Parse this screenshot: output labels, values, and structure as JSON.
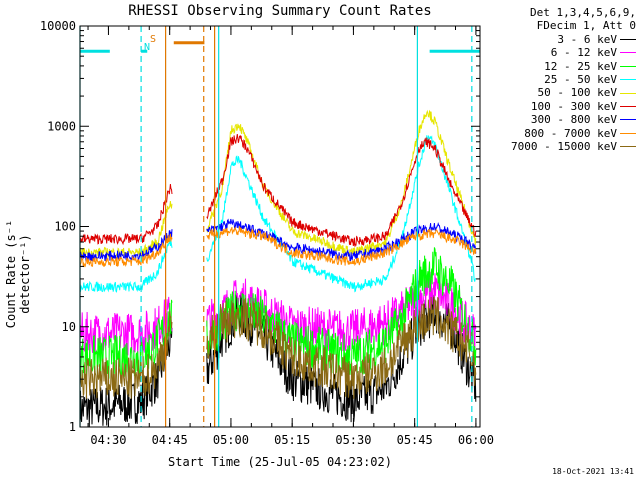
{
  "title": "RHESSI Observing Summary Count Rates",
  "legend": {
    "header": [
      "Det 1,3,4,5,6,9,",
      "FDecim 1, Att 0"
    ],
    "entries": [
      {
        "label": "3 - 6 keV",
        "color": "#000000"
      },
      {
        "label": "6 - 12 keV",
        "color": "#ff00ff"
      },
      {
        "label": "12 - 25 keV",
        "color": "#00ff00"
      },
      {
        "label": "25 - 50 keV",
        "color": "#00ffff"
      },
      {
        "label": "50 - 100 keV",
        "color": "#e6e600"
      },
      {
        "label": "100 - 300 keV",
        "color": "#dd0000"
      },
      {
        "label": "300 - 800 keV",
        "color": "#0000ff"
      },
      {
        "label": "800 - 7000 keV",
        "color": "#ff8c00"
      },
      {
        "label": "7000 - 15000 keV",
        "color": "#8b6914"
      }
    ]
  },
  "stamp": "18-Oct-2021 13:41",
  "annotations": {
    "saa": "S",
    "night": "N"
  },
  "chart_data": {
    "type": "line",
    "title": "RHESSI Observing Summary Count Rates",
    "xlabel": "Start Time (25-Jul-05 04:23:02)",
    "ylabel": "Count Rate (s⁻¹ detector⁻¹)",
    "yscale": "log",
    "ylim": [
      1,
      10000
    ],
    "xlim": [
      "04:23:02",
      "06:01:00"
    ],
    "y_ticks": [
      "1",
      "10",
      "100",
      "1000",
      "10000"
    ],
    "x_ticks": [
      "04:30",
      "04:45",
      "05:00",
      "05:15",
      "05:30",
      "05:45",
      "06:00"
    ],
    "gaps": [
      [
        "04:45:40",
        "04:54:00"
      ]
    ],
    "series": [
      {
        "name": "3 - 6 keV",
        "color": "#000000",
        "x": [
          "04:23:02",
          "04:38",
          "04:42",
          "04:45",
          "04:54",
          "04:58",
          "05:02",
          "05:08",
          "05:15",
          "05:30",
          "05:38",
          "05:42",
          "05:46",
          "05:50",
          "05:54",
          "05:58",
          "06:00"
        ],
        "y": [
          1.5,
          1.8,
          3,
          7,
          3.5,
          8,
          14,
          8,
          3,
          1.8,
          2.5,
          5,
          10,
          14,
          10,
          4,
          2.5
        ]
      },
      {
        "name": "6 - 12 keV",
        "color": "#ff00ff",
        "x": [
          "04:23:02",
          "04:38",
          "04:42",
          "04:45",
          "04:54",
          "04:58",
          "05:02",
          "05:08",
          "05:15",
          "05:30",
          "05:38",
          "05:42",
          "05:46",
          "05:50",
          "05:54",
          "05:58",
          "06:00"
        ],
        "y": [
          8.5,
          8.5,
          10,
          13,
          11,
          14,
          20,
          15,
          10,
          9,
          11,
          14,
          20,
          23,
          16,
          10,
          8
        ]
      },
      {
        "name": "12 - 25 keV",
        "color": "#00ff00",
        "x": [
          "04:23:02",
          "04:38",
          "04:42",
          "04:45",
          "04:54",
          "04:58",
          "05:02",
          "05:08",
          "05:15",
          "05:30",
          "05:38",
          "05:42",
          "05:46",
          "05:50",
          "05:54",
          "05:58",
          "06:00"
        ],
        "y": [
          5,
          5,
          7,
          12,
          7,
          11,
          16,
          12,
          7,
          5,
          7,
          12,
          30,
          40,
          25,
          10,
          6
        ]
      },
      {
        "name": "25 - 50 keV",
        "color": "#00ffff",
        "x": [
          "04:23:02",
          "04:38",
          "04:42",
          "04:45",
          "04:54",
          "04:58",
          "05:00",
          "05:02",
          "05:04",
          "05:08",
          "05:15",
          "05:30",
          "05:38",
          "05:42",
          "05:46",
          "05:48",
          "05:50",
          "05:54",
          "05:58",
          "06:00"
        ],
        "y": [
          25,
          25,
          35,
          70,
          45,
          120,
          400,
          470,
          300,
          120,
          45,
          25,
          30,
          80,
          400,
          800,
          650,
          200,
          60,
          28
        ]
      },
      {
        "name": "50 - 100 keV",
        "color": "#e6e600",
        "x": [
          "04:23:02",
          "04:38",
          "04:42",
          "04:45",
          "04:54",
          "04:58",
          "05:00",
          "05:02",
          "05:04",
          "05:08",
          "05:15",
          "05:30",
          "05:38",
          "05:42",
          "05:46",
          "05:48",
          "05:50",
          "05:54",
          "05:58",
          "06:00"
        ],
        "y": [
          55,
          55,
          70,
          170,
          90,
          250,
          900,
          1050,
          700,
          250,
          90,
          55,
          70,
          180,
          900,
          1450,
          1100,
          350,
          120,
          70
        ]
      },
      {
        "name": "100 - 300 keV",
        "color": "#dd0000",
        "x": [
          "04:23:02",
          "04:38",
          "04:42",
          "04:45",
          "04:54",
          "04:58",
          "05:00",
          "05:02",
          "05:04",
          "05:08",
          "05:15",
          "05:30",
          "05:38",
          "05:42",
          "05:46",
          "05:48",
          "05:50",
          "05:54",
          "05:58",
          "06:00"
        ],
        "y": [
          75,
          75,
          100,
          240,
          120,
          300,
          700,
          770,
          600,
          250,
          110,
          70,
          80,
          180,
          600,
          700,
          600,
          250,
          120,
          85
        ]
      },
      {
        "name": "300 - 800 keV",
        "color": "#0000ff",
        "x": [
          "04:23:02",
          "04:38",
          "04:42",
          "04:45",
          "04:54",
          "05:00",
          "05:08",
          "05:15",
          "05:30",
          "05:38",
          "05:45",
          "05:50",
          "05:56",
          "06:00"
        ],
        "y": [
          50,
          52,
          62,
          85,
          88,
          108,
          85,
          62,
          50,
          60,
          88,
          100,
          78,
          60
        ]
      },
      {
        "name": "800 - 7000 keV",
        "color": "#ff8c00",
        "x": [
          "04:23:02",
          "04:38",
          "04:42",
          "04:45",
          "04:54",
          "05:00",
          "05:08",
          "05:15",
          "05:30",
          "05:38",
          "05:45",
          "05:50",
          "05:56",
          "06:00"
        ],
        "y": [
          44,
          45,
          55,
          78,
          80,
          92,
          80,
          55,
          44,
          55,
          80,
          85,
          70,
          55
        ]
      },
      {
        "name": "7000 - 15000 keV",
        "color": "#8b6914",
        "x": [
          "04:23:02",
          "04:38",
          "04:42",
          "04:45",
          "04:54",
          "04:58",
          "05:02",
          "05:08",
          "05:15",
          "05:30",
          "05:38",
          "05:42",
          "05:46",
          "05:50",
          "05:54",
          "05:58",
          "06:00"
        ],
        "y": [
          3,
          3,
          4,
          9,
          7,
          11,
          13,
          10,
          5,
          3,
          4,
          7,
          11,
          13,
          9,
          6,
          4
        ]
      }
    ],
    "flags": [
      {
        "name": "Night",
        "color": "#00e0e0",
        "level": 5600,
        "x": [
          [
            "04:23:02",
            "04:30:20"
          ],
          [
            "04:38",
            "04:39:30"
          ],
          [
            "05:48:40",
            "06:01"
          ]
        ]
      },
      {
        "name": "SAA",
        "color": "#e07800",
        "level": 6800,
        "x": [
          [
            "04:46",
            "04:53:30"
          ]
        ]
      }
    ],
    "vlines": [
      {
        "x": "04:23:02",
        "color": "#00e0e0",
        "style": "solid"
      },
      {
        "x": "04:38:00",
        "color": "#00e0e0",
        "style": "dashed"
      },
      {
        "x": "04:44:00",
        "color": "#e07800",
        "style": "solid"
      },
      {
        "x": "04:53:20",
        "color": "#e07800",
        "style": "dashed"
      },
      {
        "x": "04:56:00",
        "color": "#e07800",
        "style": "solid"
      },
      {
        "x": "04:57:00",
        "color": "#00e0e0",
        "style": "solid"
      },
      {
        "x": "05:45:40",
        "color": "#00e0e0",
        "style": "solid"
      },
      {
        "x": "05:59:00",
        "color": "#00e0e0",
        "style": "dashed"
      }
    ]
  }
}
